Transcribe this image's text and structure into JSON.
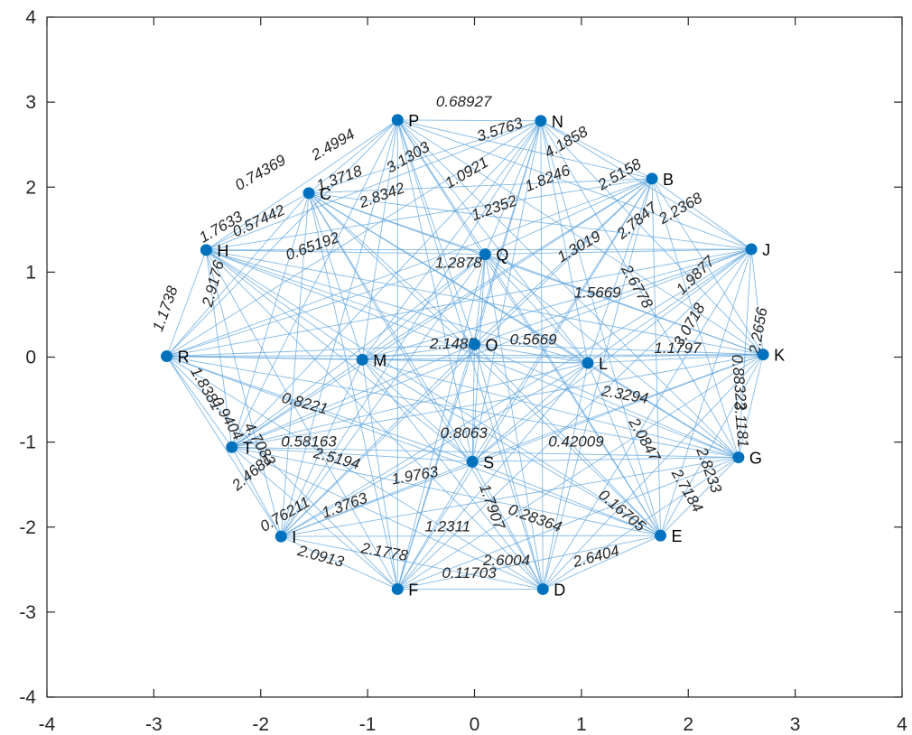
{
  "chart_data": {
    "type": "scatter",
    "title": "",
    "xlabel": "",
    "ylabel": "",
    "xlim": [
      -4,
      4
    ],
    "ylim": [
      -4,
      4
    ],
    "x_ticks": [
      "-4",
      "-3",
      "-2",
      "-1",
      "0",
      "1",
      "2",
      "3",
      "4"
    ],
    "y_ticks": [
      "4",
      "3",
      "2",
      "1",
      "0",
      "-1",
      "-2",
      "-3",
      "-4"
    ],
    "grid": false,
    "marker_color": "#0072BD",
    "edge_color": "#5BA3DC",
    "nodes": [
      {
        "name": "P",
        "x": -0.72,
        "y": 2.79
      },
      {
        "name": "N",
        "x": 0.62,
        "y": 2.78
      },
      {
        "name": "B",
        "x": 1.66,
        "y": 2.1
      },
      {
        "name": "J",
        "x": 2.59,
        "y": 1.27
      },
      {
        "name": "K",
        "x": 2.7,
        "y": 0.03
      },
      {
        "name": "G",
        "x": 2.47,
        "y": -1.18
      },
      {
        "name": "E",
        "x": 1.74,
        "y": -2.1
      },
      {
        "name": "D",
        "x": 0.64,
        "y": -2.73
      },
      {
        "name": "F",
        "x": -0.72,
        "y": -2.73
      },
      {
        "name": "I",
        "x": -1.81,
        "y": -2.11
      },
      {
        "name": "T",
        "x": -2.27,
        "y": -1.06
      },
      {
        "name": "R",
        "x": -2.88,
        "y": 0.01
      },
      {
        "name": "H",
        "x": -2.51,
        "y": 1.26
      },
      {
        "name": "C",
        "x": -1.55,
        "y": 1.93
      },
      {
        "name": "Q",
        "x": 0.1,
        "y": 1.21
      },
      {
        "name": "L",
        "x": 1.06,
        "y": -0.07
      },
      {
        "name": "M",
        "x": -1.05,
        "y": -0.03
      },
      {
        "name": "O",
        "x": 0.0,
        "y": 0.15
      },
      {
        "name": "S",
        "x": -0.02,
        "y": -1.23
      }
    ],
    "edge_labels": [
      {
        "text": "0.68927",
        "x": -0.1,
        "y": 2.95,
        "angle": 0
      },
      {
        "text": "3.5763",
        "x": 0.25,
        "y": 2.62,
        "angle": 18
      },
      {
        "text": "4.1858",
        "x": 0.88,
        "y": 2.48,
        "angle": 30
      },
      {
        "text": "2.5158",
        "x": 1.38,
        "y": 2.1,
        "angle": 30
      },
      {
        "text": "2.2368",
        "x": 1.95,
        "y": 1.7,
        "angle": 30
      },
      {
        "text": "1.8246",
        "x": 0.7,
        "y": 2.05,
        "angle": 22
      },
      {
        "text": "1.9877",
        "x": 2.1,
        "y": 0.92,
        "angle": 45
      },
      {
        "text": "2.7847",
        "x": 1.55,
        "y": 1.56,
        "angle": 40
      },
      {
        "text": "2.2656",
        "x": 2.7,
        "y": 0.3,
        "angle": 80
      },
      {
        "text": "3.0718",
        "x": 2.05,
        "y": 0.35,
        "angle": 60
      },
      {
        "text": "0.88322",
        "x": 2.43,
        "y": -0.3,
        "angle": -85
      },
      {
        "text": "3.1181",
        "x": 2.45,
        "y": -0.8,
        "angle": -85
      },
      {
        "text": "1.1797",
        "x": 1.9,
        "y": 0.05,
        "angle": 0
      },
      {
        "text": "2.8233",
        "x": 2.15,
        "y": -1.35,
        "angle": -70
      },
      {
        "text": "2.7184",
        "x": 1.95,
        "y": -1.6,
        "angle": -60
      },
      {
        "text": "2.0847",
        "x": 1.55,
        "y": -1.0,
        "angle": -60
      },
      {
        "text": "0.16705",
        "x": 1.35,
        "y": -1.85,
        "angle": -40
      },
      {
        "text": "2.6404",
        "x": 1.15,
        "y": -2.4,
        "angle": 15
      },
      {
        "text": "2.6004",
        "x": 0.3,
        "y": -2.45,
        "angle": 0
      },
      {
        "text": "0.28364",
        "x": 0.55,
        "y": -1.95,
        "angle": -20
      },
      {
        "text": "0.11703",
        "x": -0.05,
        "y": -2.6,
        "angle": 0
      },
      {
        "text": "1.2311",
        "x": -0.25,
        "y": -2.05,
        "angle": 0
      },
      {
        "text": "2.1778",
        "x": -0.85,
        "y": -2.35,
        "angle": -10
      },
      {
        "text": "2.0913",
        "x": -1.45,
        "y": -2.4,
        "angle": -15
      },
      {
        "text": "1.9763",
        "x": -0.55,
        "y": -1.45,
        "angle": 10
      },
      {
        "text": "1.3763",
        "x": -1.2,
        "y": -1.8,
        "angle": 20
      },
      {
        "text": "0.76211",
        "x": -1.75,
        "y": -1.9,
        "angle": 30
      },
      {
        "text": "2.4681",
        "x": -2.05,
        "y": -1.4,
        "angle": 40
      },
      {
        "text": "4.7083",
        "x": -2.05,
        "y": -1.05,
        "angle": -60
      },
      {
        "text": "0.9404",
        "x": -2.35,
        "y": -0.75,
        "angle": -60
      },
      {
        "text": "1.8381",
        "x": -2.55,
        "y": -0.4,
        "angle": -60
      },
      {
        "text": "1.1738",
        "x": -2.85,
        "y": 0.55,
        "angle": 70
      },
      {
        "text": "2.9176",
        "x": -2.4,
        "y": 0.85,
        "angle": 75
      },
      {
        "text": "1.7633",
        "x": -2.35,
        "y": 1.48,
        "angle": 30
      },
      {
        "text": "0.74369",
        "x": -1.98,
        "y": 2.12,
        "angle": 30
      },
      {
        "text": "2.4994",
        "x": -1.3,
        "y": 2.45,
        "angle": 30
      },
      {
        "text": "1.3718",
        "x": -1.25,
        "y": 2.05,
        "angle": 20
      },
      {
        "text": "0.57442",
        "x": -2.0,
        "y": 1.55,
        "angle": 25
      },
      {
        "text": "3.1303",
        "x": -0.6,
        "y": 2.3,
        "angle": 30
      },
      {
        "text": "1.0921",
        "x": -0.05,
        "y": 2.12,
        "angle": 30
      },
      {
        "text": "2.8342",
        "x": -0.85,
        "y": 1.85,
        "angle": 20
      },
      {
        "text": "1.2352",
        "x": 0.2,
        "y": 1.7,
        "angle": 20
      },
      {
        "text": "1.3019",
        "x": 1.0,
        "y": 1.25,
        "angle": 30
      },
      {
        "text": "2.6778",
        "x": 1.48,
        "y": 0.8,
        "angle": -60
      },
      {
        "text": "1.2878",
        "x": -0.15,
        "y": 1.05,
        "angle": 0
      },
      {
        "text": "0.65192",
        "x": -1.5,
        "y": 1.25,
        "angle": 20
      },
      {
        "text": "2.1485",
        "x": -0.2,
        "y": 0.1,
        "angle": 0
      },
      {
        "text": "0.58163",
        "x": -1.55,
        "y": -1.05,
        "angle": 0
      },
      {
        "text": "2.5194",
        "x": -1.3,
        "y": -1.25,
        "angle": -15
      },
      {
        "text": "0.8221",
        "x": -1.6,
        "y": -0.6,
        "angle": -15
      },
      {
        "text": "0.8063",
        "x": -0.1,
        "y": -0.95,
        "angle": 0
      },
      {
        "text": "1.7907",
        "x": 0.12,
        "y": -1.78,
        "angle": -70
      },
      {
        "text": "0.42009",
        "x": 0.95,
        "y": -1.05,
        "angle": 0
      },
      {
        "text": "2.3294",
        "x": 1.4,
        "y": -0.5,
        "angle": -10
      },
      {
        "text": "1.5669",
        "x": 1.15,
        "y": 0.7,
        "angle": 0
      },
      {
        "text": "0.5669",
        "x": 0.55,
        "y": 0.15,
        "angle": 0
      }
    ]
  }
}
